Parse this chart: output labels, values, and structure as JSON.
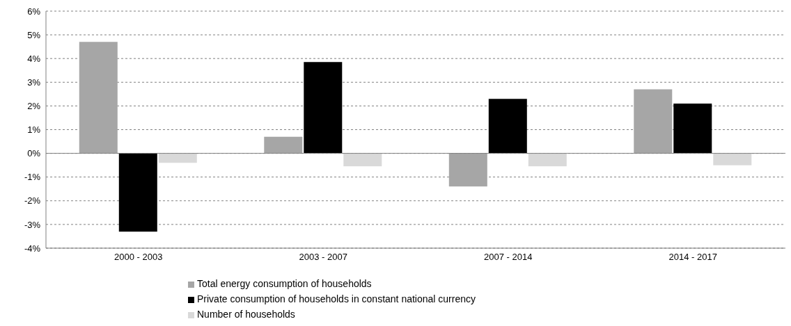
{
  "chart_data": {
    "type": "bar",
    "categories": [
      "2000 - 2003",
      "2003 - 2007",
      "2007 - 2014",
      "2014 - 2017"
    ],
    "series": [
      {
        "name": "Total energy consumption of households",
        "color": "#a6a6a6",
        "values": [
          4.7,
          0.7,
          -1.4,
          2.7
        ]
      },
      {
        "name": "Private consumption of households in constant national currency",
        "color": "#000000",
        "values": [
          -3.3,
          3.85,
          2.3,
          2.1
        ]
      },
      {
        "name": "Number of households",
        "color": "#d9d9d9",
        "values": [
          -0.4,
          -0.55,
          -0.55,
          -0.5
        ]
      }
    ],
    "ylim": [
      -4,
      6
    ],
    "yticks": [
      {
        "value": -4,
        "label": "-4%"
      },
      {
        "value": -3,
        "label": "-3%"
      },
      {
        "value": -2,
        "label": "-2%"
      },
      {
        "value": -1,
        "label": "-1%"
      },
      {
        "value": 0,
        "label": "0%"
      },
      {
        "value": 1,
        "label": "1%"
      },
      {
        "value": 2,
        "label": "2%"
      },
      {
        "value": 3,
        "label": "3%"
      },
      {
        "value": 4,
        "label": "4%"
      },
      {
        "value": 5,
        "label": "5%"
      },
      {
        "value": 6,
        "label": "6%"
      }
    ],
    "grid": "y",
    "legend": "bottom"
  }
}
